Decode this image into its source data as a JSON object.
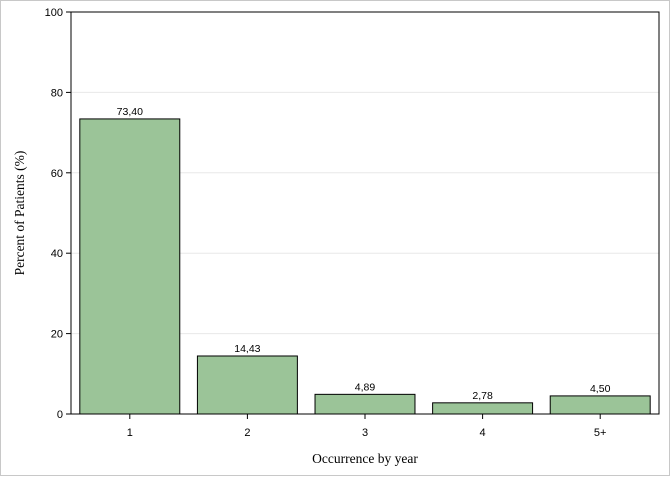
{
  "chart_data": {
    "type": "bar",
    "categories": [
      "1",
      "2",
      "3",
      "4",
      "5+"
    ],
    "values": [
      73.4,
      14.43,
      4.89,
      2.78,
      4.5
    ],
    "value_labels": [
      "73,40",
      "14,43",
      "4,89",
      "2,78",
      "4,50"
    ],
    "title": "",
    "xlabel": "Occurrence by year",
    "ylabel": "Percent of Patients (%)",
    "ylim": [
      0,
      100
    ],
    "yticks": [
      0,
      20,
      40,
      60,
      80,
      100
    ],
    "grid": true,
    "legend": "none",
    "bar_color": "#9bc498",
    "bar_edge_color": "#000000",
    "grid_color": "#e8e8e8"
  }
}
